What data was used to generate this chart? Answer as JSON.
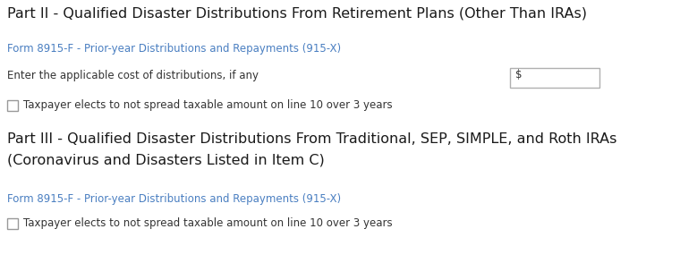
{
  "bg_color": "#ffffff",
  "heading1": "Part II - Qualified Disaster Distributions From Retirement Plans (Other Than IRAs)",
  "link1": "Form 8915-F - Prior-year Distributions and Repayments (915-X)",
  "field_label": "Enter the applicable cost of distributions, if any",
  "field_symbol": "$",
  "checkbox_label1": "Taxpayer elects to not spread taxable amount on line 10 over 3 years",
  "heading2_line1": "Part III - Qualified Disaster Distributions From Traditional, SEP, SIMPLE, and Roth IRAs",
  "heading2_line2": "(Coronavirus and Disasters Listed in Item C)",
  "link2": "Form 8915-F - Prior-year Distributions and Repayments (915-X)",
  "checkbox_label2": "Taxpayer elects to not spread taxable amount on line 10 over 3 years",
  "heading_color": "#1a1a1a",
  "link_color": "#4a7fc1",
  "label_color": "#333333",
  "heading_fontsize": 11.5,
  "link_fontsize": 8.5,
  "label_fontsize": 8.5,
  "box_edge_color": "#b0b0b0",
  "box_fill": "#ffffff",
  "checkbox_edge_color": "#999999"
}
